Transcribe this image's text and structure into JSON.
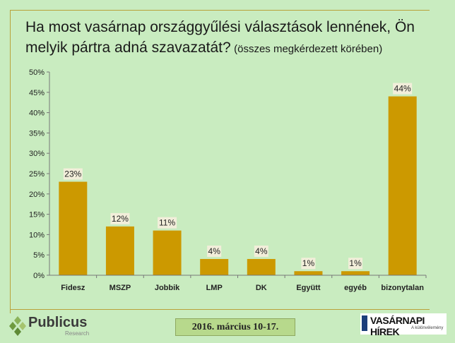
{
  "title": {
    "line1": "Ha most vasárnap országgyűlési választások lennének, Ön",
    "line2": "melyik pártra adná szavazatát?",
    "subtitle": "(összes megkérdezett körében)"
  },
  "footer": {
    "date": "2016. március 10-17.",
    "logo_left_name": "Publicus",
    "logo_left_tag": "Research",
    "logo_right_name": "VASÁRNAPI HÍREK",
    "logo_right_tag": "A különvélemény"
  },
  "colors": {
    "bar": "#cc9900",
    "background": "#c9ecc0",
    "label_bg": "#f2eeda",
    "frame": "#b9a23a"
  },
  "chart_data": {
    "type": "bar",
    "categories": [
      "Fidesz",
      "MSZP",
      "Jobbik",
      "LMP",
      "DK",
      "Együtt",
      "egyéb",
      "bizonytalan"
    ],
    "values": [
      23,
      12,
      11,
      4,
      4,
      1,
      1,
      44
    ],
    "data_labels": [
      "23%",
      "12%",
      "11%",
      "4%",
      "4%",
      "1%",
      "1%",
      "44%"
    ],
    "ylim": [
      0,
      50
    ],
    "yticks": [
      "0%",
      "5%",
      "10%",
      "15%",
      "20%",
      "25%",
      "30%",
      "35%",
      "40%",
      "45%",
      "50%"
    ],
    "grid": false,
    "legend": "none"
  }
}
